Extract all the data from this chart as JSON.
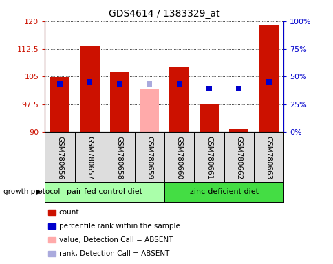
{
  "title": "GDS4614 / 1383329_at",
  "samples": [
    "GSM780656",
    "GSM780657",
    "GSM780658",
    "GSM780659",
    "GSM780660",
    "GSM780661",
    "GSM780662",
    "GSM780663"
  ],
  "bar_values": [
    104.8,
    113.2,
    106.3,
    null,
    107.5,
    97.5,
    91.0,
    119.0
  ],
  "bar_absent_values": [
    null,
    null,
    null,
    101.5,
    null,
    null,
    null,
    null
  ],
  "percentile_values": [
    103.0,
    103.5,
    103.0,
    null,
    103.0,
    101.8,
    101.8,
    103.5
  ],
  "percentile_absent": [
    null,
    null,
    null,
    103.0,
    null,
    null,
    null,
    null
  ],
  "percentile_color_normal": "#0000cc",
  "percentile_color_absent": "#aaaadd",
  "bar_color_normal": "#cc1100",
  "bar_color_absent": "#ffaaaa",
  "ymin": 90,
  "ymax": 120,
  "yticks": [
    90,
    97.5,
    105,
    112.5,
    120
  ],
  "ytick_labels": [
    "90",
    "97.5",
    "105",
    "112.5",
    "120"
  ],
  "y2min": 0,
  "y2max": 100,
  "y2ticks": [
    0,
    25,
    50,
    75,
    100
  ],
  "y2ticklabels": [
    "0%",
    "25%",
    "50%",
    "75%",
    "100%"
  ],
  "bar_bottom": 90,
  "group1_indices": [
    0,
    1,
    2,
    3
  ],
  "group2_indices": [
    4,
    5,
    6,
    7
  ],
  "group1_label": "pair-fed control diet",
  "group2_label": "zinc-deficient diet",
  "group1_color": "#aaffaa",
  "group2_color": "#44dd44",
  "protocol_label": "growth protocol",
  "legend_items": [
    {
      "label": "count",
      "color": "#cc1100"
    },
    {
      "label": "percentile rank within the sample",
      "color": "#0000cc"
    },
    {
      "label": "value, Detection Call = ABSENT",
      "color": "#ffaaaa"
    },
    {
      "label": "rank, Detection Call = ABSENT",
      "color": "#aaaadd"
    }
  ],
  "bar_width": 0.65,
  "marker_size": 6
}
